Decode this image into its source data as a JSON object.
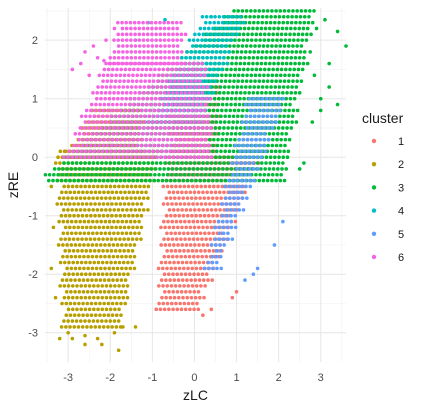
{
  "chart_data": {
    "type": "scatter",
    "title": "",
    "xlabel": "zLC",
    "ylabel": "zRE",
    "xlim": [
      -3.55,
      3.6
    ],
    "ylim": [
      -3.5,
      2.55
    ],
    "xticks": [
      -3,
      -2,
      -1,
      0,
      1,
      2,
      3
    ],
    "yticks": [
      -3,
      -2,
      -1,
      0,
      1,
      2
    ],
    "grid": true,
    "legend": {
      "title": "cluster",
      "position": "right"
    },
    "row_spacing": 0.1,
    "point_spacing": 0.1,
    "series": [
      {
        "name": "1",
        "color": "#F8766D",
        "regions": [
          {
            "y": [
              -2.6,
              0.0
            ],
            "x_left": "-0.7 + 0.08*y",
            "x_right": "1.6 + 0.55*y"
          },
          {
            "y": [
              0.0,
              1.2
            ],
            "x_left": "-0.6",
            "x_right": "0.6 + 0.1*y"
          }
        ],
        "points": [
          [
            0.2,
            -2.7
          ],
          [
            0.4,
            -2.6
          ],
          [
            0.9,
            -2.4
          ],
          [
            1.0,
            -2.3
          ]
        ]
      },
      {
        "name": "2",
        "color": "#B79F00",
        "regions": [
          {
            "y": [
              -2.9,
              0.1
            ],
            "x_left": "-3.3 - 0.05*y",
            "x_right": "-0.8 + 0.3*y"
          },
          {
            "y": [
              0.1,
              0.8
            ],
            "x_left": "-3.15 + 0.9*y",
            "x_right": "-1.2"
          }
        ],
        "points": [
          [
            -3.0,
            -3.0
          ],
          [
            -2.9,
            -3.1
          ],
          [
            -2.6,
            -3.05
          ],
          [
            -2.3,
            -3.1
          ],
          [
            -2.6,
            -3.2
          ],
          [
            -2.2,
            -3.2
          ],
          [
            -1.8,
            -3.3
          ],
          [
            -1.7,
            -2.9
          ],
          [
            -3.2,
            -3.1
          ],
          [
            -1.4,
            -2.9
          ],
          [
            -1.9,
            -3.0
          ],
          [
            -3.3,
            -2.4
          ],
          [
            -3.4,
            -1.9
          ],
          [
            -3.35,
            -1.2
          ],
          [
            -3.4,
            -0.5
          ]
        ]
      },
      {
        "name": "3",
        "color": "#00BA38",
        "regions": [
          {
            "y": [
              -0.4,
              2.5
            ],
            "x_left": "-1.2 + 1.6*(y - 1.2)",
            "x_right": "2.3 + 0.25*y"
          }
        ],
        "points": [
          [
            2.9,
            2.2
          ],
          [
            3.1,
            2.35
          ],
          [
            3.4,
            2.15
          ],
          [
            3.6,
            1.9
          ],
          [
            3.2,
            1.6
          ],
          [
            2.85,
            1.4
          ],
          [
            3.2,
            1.2
          ],
          [
            3.0,
            1.0
          ],
          [
            3.4,
            0.9
          ],
          [
            3.0,
            0.8
          ],
          [
            2.8,
            0.6
          ],
          [
            2.6,
            -0.1
          ],
          [
            2.5,
            -0.2
          ],
          [
            2.75,
            1.8
          ]
        ]
      },
      {
        "name": "4",
        "color": "#00BFC4",
        "regions": [
          {
            "y": [
              0.6,
              2.4
            ],
            "x_left": "-1.1 + 0.7*(y - 0.6)",
            "x_right": "0.2 + 0.6*(y - 0.6)"
          }
        ],
        "points": [
          [
            -1.4,
            2.0
          ],
          [
            -1.1,
            2.3
          ],
          [
            -0.7,
            2.35
          ],
          [
            0.4,
            2.4
          ],
          [
            0.8,
            2.4
          ]
        ]
      },
      {
        "name": "5",
        "color": "#619CFF",
        "regions": [
          {
            "y": [
              -1.9,
              1.0
            ],
            "x_left": "0.9 + 0.35*y",
            "x_right": "1.7 + 0.55*y"
          }
        ],
        "points": [
          [
            1.4,
            -2.0
          ],
          [
            1.5,
            -1.9
          ],
          [
            1.9,
            -1.5
          ],
          [
            2.1,
            -1.1
          ],
          [
            1.2,
            -2.1
          ]
        ]
      },
      {
        "name": "6",
        "color": "#F564E3",
        "regions": [
          {
            "y": [
              0.0,
              1.6
            ],
            "x_left": "-3.1 + 0.6*y",
            "x_right": "0.5 - 0.1*y"
          },
          {
            "y": [
              1.6,
              2.3
            ],
            "x_left": "-2.1 + 0.4*(y - 1.6)",
            "x_right": "-0.2"
          }
        ],
        "points": [
          [
            -2.9,
            1.5
          ],
          [
            -2.6,
            1.8
          ],
          [
            -2.5,
            1.4
          ],
          [
            -2.3,
            1.7
          ],
          [
            -2.15,
            1.65
          ],
          [
            -2.7,
            1.6
          ],
          [
            -2.4,
            1.9
          ],
          [
            -2.1,
            2.0
          ],
          [
            -1.9,
            2.2
          ]
        ]
      }
    ]
  }
}
